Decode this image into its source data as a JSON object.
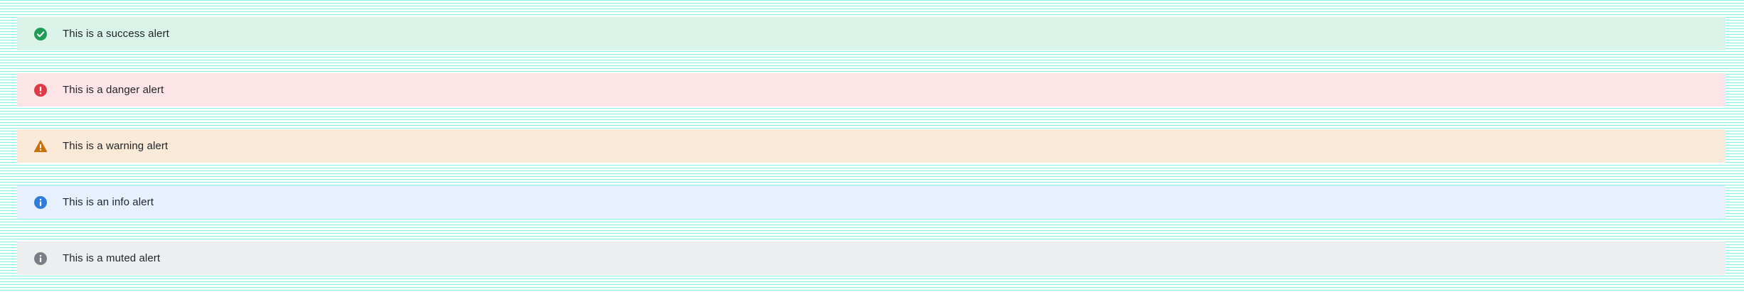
{
  "alerts": [
    {
      "type": "success",
      "text": "This is a success alert",
      "icon": "check-circle-icon",
      "bg": "#dbf4ea",
      "icon_color": "#1f9d55"
    },
    {
      "type": "danger",
      "text": "This is a danger alert",
      "icon": "exclamation-circle-icon",
      "bg": "#fde5e7",
      "icon_color": "#e03a45"
    },
    {
      "type": "warning",
      "text": "This is a warning alert",
      "icon": "warning-triangle-icon",
      "bg": "#fbead8",
      "icon_color": "#c9700a"
    },
    {
      "type": "info",
      "text": "This is an info alert",
      "icon": "info-circle-icon",
      "bg": "#e6f0ff",
      "icon_color": "#2f7ddb"
    },
    {
      "type": "muted",
      "text": "This is a muted alert",
      "icon": "info-circle-icon",
      "bg": "#eceef0",
      "icon_color": "#7a7f86"
    }
  ]
}
